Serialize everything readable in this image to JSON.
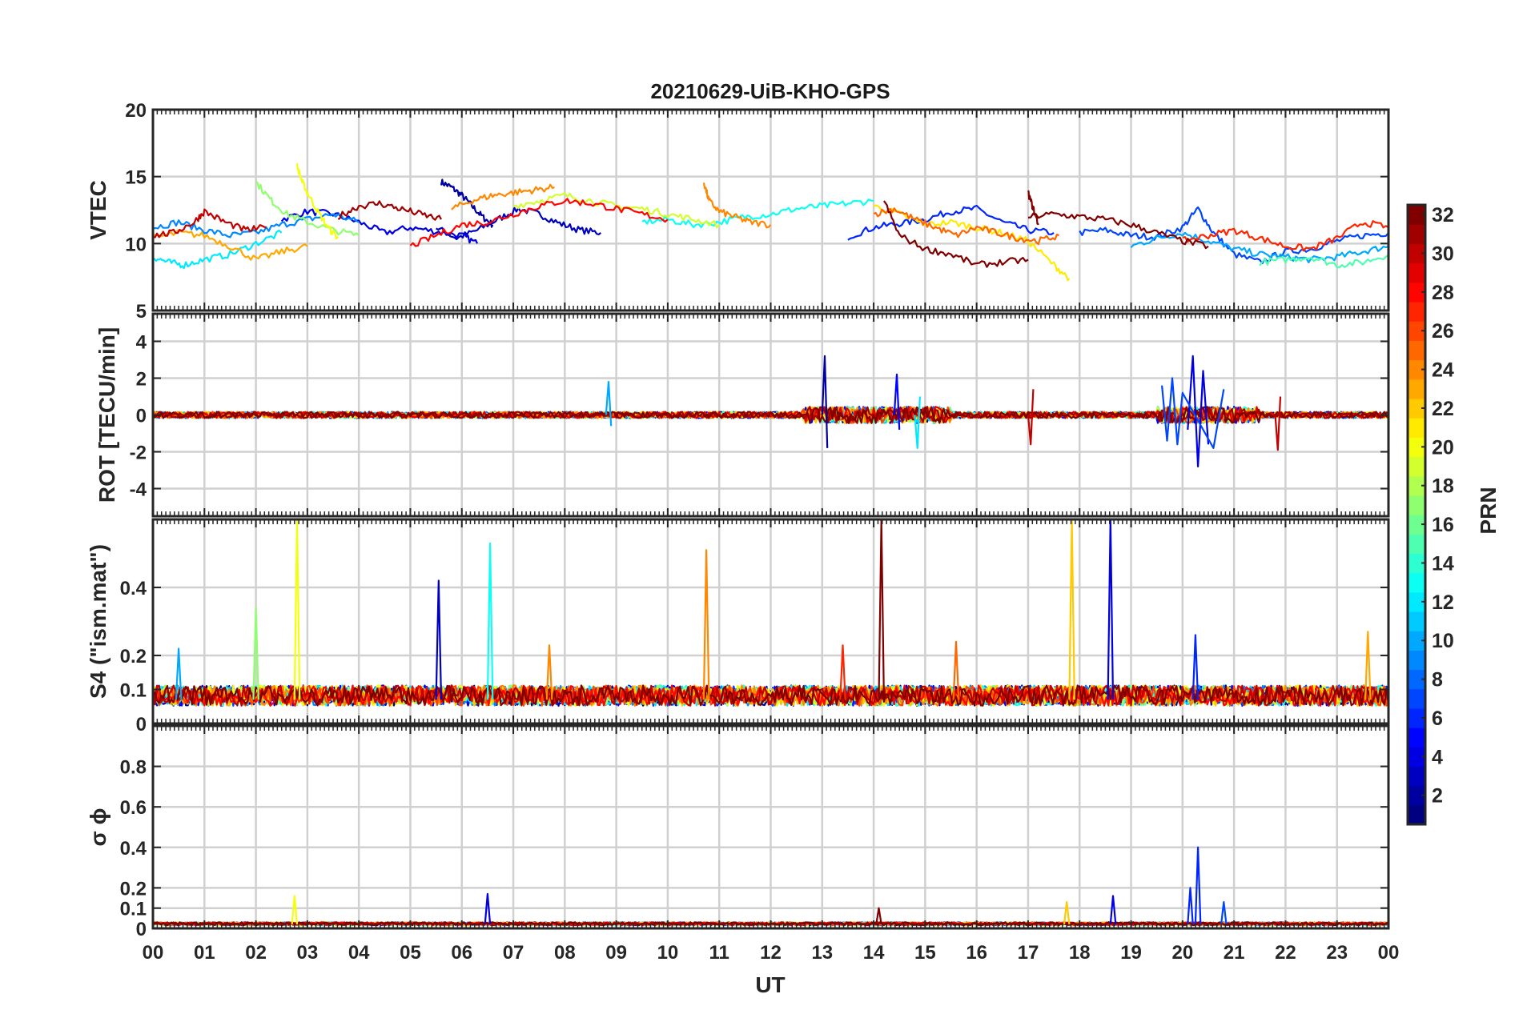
{
  "chart_data": {
    "type": "line",
    "title": "20210629-UiB-KHO-GPS",
    "xlabel": "UT",
    "x_tick_labels": [
      "00",
      "01",
      "02",
      "03",
      "04",
      "05",
      "06",
      "07",
      "08",
      "09",
      "10",
      "11",
      "12",
      "13",
      "14",
      "15",
      "16",
      "17",
      "18",
      "19",
      "20",
      "21",
      "22",
      "23",
      "00"
    ],
    "xlim": [
      0,
      24
    ],
    "colorbar": {
      "label": "PRN",
      "range": [
        1,
        32
      ],
      "tick_labels": [
        "2",
        "4",
        "6",
        "8",
        "10",
        "12",
        "14",
        "16",
        "18",
        "20",
        "22",
        "24",
        "26",
        "28",
        "30",
        "32"
      ],
      "colormap": "jet"
    },
    "panels": [
      {
        "id": "vtec",
        "ylabel": "VTEC",
        "ylim": [
          5,
          20
        ],
        "y_ticks": [
          5,
          10,
          15,
          20
        ],
        "y_tick_labels": [
          "5",
          "10",
          "15",
          "20"
        ],
        "grid": true,
        "series": [
          {
            "prn": 2,
            "x": [
              5.6,
              5.8,
              6.0,
              6.2,
              6.4,
              6.6
            ],
            "y": [
              14.6,
              14.2,
              13.6,
              12.8,
              12.0,
              11.4
            ]
          },
          {
            "prn": 3,
            "x": [
              5.5,
              5.9,
              6.3,
              6.7,
              7.1,
              7.5,
              7.9,
              8.3,
              8.7
            ],
            "y": [
              11.2,
              10.4,
              11.0,
              11.8,
              12.6,
              12.2,
              11.5,
              11.0,
              10.8
            ]
          },
          {
            "prn": 4,
            "x": [
              2.5,
              3.0,
              3.5,
              4.0,
              4.5,
              5.0,
              5.5,
              6.0,
              6.3
            ],
            "y": [
              11.8,
              12.4,
              12.2,
              11.6,
              10.8,
              11.2,
              10.9,
              10.6,
              10.0
            ]
          },
          {
            "prn": 6,
            "x": [
              13.5,
              14.0,
              14.5,
              15.0,
              15.5,
              16.0,
              16.5,
              17.0,
              17.5
            ],
            "y": [
              10.5,
              11.2,
              11.5,
              11.8,
              12.4,
              12.6,
              11.6,
              11.0,
              10.8
            ]
          },
          {
            "prn": 7,
            "x": [
              18.0,
              18.5,
              19.0,
              19.5,
              20.0,
              20.3,
              20.6,
              21.0,
              21.5,
              22.0,
              22.5,
              23.0,
              23.5,
              24.0
            ],
            "y": [
              10.8,
              11.0,
              10.6,
              10.5,
              11.2,
              12.6,
              10.8,
              9.2,
              8.6,
              9.4,
              9.6,
              10.2,
              10.6,
              10.8
            ]
          },
          {
            "prn": 9,
            "x": [
              0.0,
              0.5,
              1.0,
              1.5,
              2.0,
              2.5,
              3.0,
              3.5,
              4.0
            ],
            "y": [
              11.2,
              11.6,
              11.0,
              10.6,
              10.8,
              11.4,
              11.8,
              12.2,
              11.6
            ]
          },
          {
            "prn": 10,
            "x": [
              19.0,
              19.5,
              20.0,
              20.5,
              21.0,
              21.5,
              22.0,
              22.5,
              23.0,
              23.5,
              24.0
            ],
            "y": [
              9.8,
              10.4,
              10.8,
              10.2,
              9.6,
              9.2,
              9.0,
              8.8,
              9.0,
              9.4,
              9.8
            ]
          },
          {
            "prn": 12,
            "x": [
              0.0,
              0.3,
              0.6,
              1.0,
              1.5,
              2.0,
              2.5
            ],
            "y": [
              9.0,
              8.6,
              8.4,
              8.8,
              9.2,
              10.0,
              10.8
            ]
          },
          {
            "prn": 13,
            "x": [
              9.5,
              10.0,
              10.5,
              11.0,
              11.5,
              12.0,
              12.5,
              13.0,
              13.5,
              14.0
            ],
            "y": [
              11.6,
              11.8,
              11.4,
              11.6,
              12.0,
              12.2,
              12.6,
              12.8,
              13.0,
              13.2
            ]
          },
          {
            "prn": 15,
            "x": [
              21.5,
              22.0,
              22.5,
              23.0,
              23.5,
              24.0
            ],
            "y": [
              8.6,
              8.8,
              9.0,
              8.4,
              8.6,
              9.2
            ]
          },
          {
            "prn": 17,
            "x": [
              2.0,
              2.3,
              2.6,
              3.0,
              3.5,
              4.0
            ],
            "y": [
              14.6,
              13.2,
              12.2,
              11.6,
              11.0,
              10.6
            ]
          },
          {
            "prn": 19,
            "x": [
              7.0,
              7.5,
              8.0,
              8.5,
              9.0,
              9.5,
              10.0,
              10.5,
              11.0
            ],
            "y": [
              12.8,
              13.2,
              13.6,
              13.2,
              12.8,
              12.6,
              12.2,
              11.8,
              11.4
            ]
          },
          {
            "prn": 20,
            "x": [
              2.8,
              2.9,
              3.0,
              3.2,
              3.4,
              3.6
            ],
            "y": [
              15.8,
              14.6,
              13.8,
              12.4,
              11.2,
              10.4
            ]
          },
          {
            "prn": 21,
            "x": [
              14.0,
              14.5,
              15.0,
              15.5,
              16.0,
              16.5,
              17.0,
              17.5,
              17.8
            ],
            "y": [
              12.8,
              12.2,
              11.4,
              11.6,
              11.2,
              10.8,
              10.2,
              8.4,
              7.4
            ]
          },
          {
            "prn": 23,
            "x": [
              0.0,
              0.5,
              1.0,
              1.5,
              2.0,
              2.5,
              3.0
            ],
            "y": [
              10.4,
              10.8,
              10.6,
              9.8,
              8.8,
              9.4,
              9.8
            ]
          },
          {
            "prn": 24,
            "x": [
              5.8,
              6.2,
              6.6,
              7.0,
              7.4,
              7.8
            ],
            "y": [
              12.6,
              13.2,
              13.6,
              13.8,
              14.0,
              14.2
            ]
          },
          {
            "prn": 24,
            "x": [
              10.7,
              10.8,
              11.0,
              11.3,
              11.6,
              12.0
            ],
            "y": [
              14.6,
              13.2,
              12.4,
              12.0,
              11.6,
              11.4
            ]
          },
          {
            "prn": 25,
            "x": [
              14.0,
              14.4,
              14.8,
              15.2,
              15.6,
              16.0,
              16.4,
              16.8,
              17.2,
              17.6
            ],
            "y": [
              12.2,
              12.6,
              11.8,
              11.2,
              10.6,
              11.2,
              10.8,
              10.4,
              10.2,
              10.6
            ]
          },
          {
            "prn": 27,
            "x": [
              20.0,
              20.5,
              21.0,
              21.5,
              22.0,
              22.5,
              23.0,
              23.5,
              24.0
            ],
            "y": [
              10.2,
              10.6,
              11.0,
              10.4,
              9.8,
              9.6,
              10.4,
              11.6,
              11.2
            ]
          },
          {
            "prn": 28,
            "x": [
              5.0,
              5.5,
              6.0,
              6.5,
              7.0,
              7.5,
              8.0,
              8.5,
              9.0,
              9.5,
              10.0
            ],
            "y": [
              9.8,
              10.6,
              11.4,
              11.6,
              12.2,
              12.8,
              13.2,
              13.0,
              12.6,
              12.2,
              11.8
            ]
          },
          {
            "prn": 30,
            "x": [
              0.0,
              0.4,
              0.8,
              1.0,
              1.4,
              1.8,
              2.2
            ],
            "y": [
              10.6,
              10.8,
              11.6,
              12.4,
              11.6,
              11.0,
              11.2
            ]
          },
          {
            "prn": 31,
            "x": [
              3.6,
              4.0,
              4.4,
              4.8,
              5.2,
              5.6
            ],
            "y": [
              12.0,
              12.8,
              13.0,
              12.6,
              12.2,
              11.8
            ]
          },
          {
            "prn": 32,
            "x": [
              17.0,
              17.5,
              18.0,
              18.5,
              19.0,
              19.5,
              20.0,
              20.5
            ],
            "y": [
              12.0,
              12.2,
              12.0,
              11.8,
              11.4,
              10.8,
              10.2,
              9.8
            ]
          },
          {
            "prn": 32,
            "x": [
              14.2,
              14.5,
              15.0,
              15.5,
              16.0,
              16.5,
              17.0
            ],
            "y": [
              13.2,
              10.6,
              9.6,
              9.2,
              8.4,
              8.6,
              8.8
            ]
          },
          {
            "prn": 32,
            "x": [
              17.0,
              17.1,
              17.2
            ],
            "y": [
              13.8,
              12.6,
              11.4
            ]
          }
        ]
      },
      {
        "id": "rot",
        "ylabel": "ROT [TECU/min]",
        "ylim": [
          -5.5,
          5.5
        ],
        "y_ticks": [
          -4,
          -2,
          0,
          2,
          4
        ],
        "y_tick_labels": [
          "-4",
          "-2",
          "0",
          "2",
          "4"
        ],
        "grid": true,
        "series": [
          {
            "prn": 2,
            "x": [
              13.0,
              13.05,
              13.1
            ],
            "y": [
              0.0,
              3.2,
              -1.8
            ]
          },
          {
            "prn": 4,
            "x": [
              20.1,
              20.2,
              20.3,
              20.4,
              20.5
            ],
            "y": [
              -0.8,
              3.2,
              -2.8,
              2.4,
              -1.6
            ]
          },
          {
            "prn": 7,
            "x": [
              19.6,
              19.7,
              19.8,
              19.9,
              20.0,
              20.6,
              20.8
            ],
            "y": [
              1.6,
              -1.4,
              2.0,
              -1.6,
              1.2,
              -1.8,
              1.4
            ]
          },
          {
            "prn": 10,
            "x": [
              8.8,
              8.85,
              8.9
            ],
            "y": [
              0.0,
              1.8,
              -0.6
            ]
          },
          {
            "prn": 12,
            "x": [
              14.8,
              14.85,
              14.9
            ],
            "y": [
              0.0,
              -1.8,
              1.0
            ]
          },
          {
            "prn": 5,
            "x": [
              14.4,
              14.45,
              14.5
            ],
            "y": [
              0.0,
              2.2,
              -0.8
            ]
          },
          {
            "prn": 30,
            "x": [
              21.8,
              21.85,
              21.9
            ],
            "y": [
              0.0,
              -1.9,
              1.0
            ]
          },
          {
            "prn": 30,
            "x": [
              17.0,
              17.05,
              17.1
            ],
            "y": [
              0.0,
              -1.6,
              1.4
            ]
          }
        ]
      },
      {
        "id": "s4",
        "ylabel": "S4 (\"ism.mat\")",
        "ylim": [
          0,
          0.6
        ],
        "y_ticks": [
          0,
          0.1,
          0.2,
          0.4
        ],
        "y_tick_labels": [
          "0",
          "0.1",
          "0.2",
          "0.4"
        ],
        "grid": true,
        "spikes": [
          {
            "prn": 20,
            "x": 2.8,
            "y": 0.6
          },
          {
            "prn": 17,
            "x": 2.0,
            "y": 0.34
          },
          {
            "prn": 10,
            "x": 0.5,
            "y": 0.22
          },
          {
            "prn": 3,
            "x": 5.55,
            "y": 0.42
          },
          {
            "prn": 13,
            "x": 6.55,
            "y": 0.53
          },
          {
            "prn": 24,
            "x": 10.75,
            "y": 0.51
          },
          {
            "prn": 32,
            "x": 14.15,
            "y": 0.6
          },
          {
            "prn": 22,
            "x": 17.85,
            "y": 0.6
          },
          {
            "prn": 4,
            "x": 18.6,
            "y": 0.6
          },
          {
            "prn": 6,
            "x": 20.25,
            "y": 0.26
          },
          {
            "prn": 23,
            "x": 23.6,
            "y": 0.27
          },
          {
            "prn": 27,
            "x": 13.4,
            "y": 0.23
          },
          {
            "prn": 25,
            "x": 15.6,
            "y": 0.24
          },
          {
            "prn": 24,
            "x": 7.7,
            "y": 0.23
          }
        ]
      },
      {
        "id": "sigma_phi",
        "ylabel": "σ ϕ",
        "ylim": [
          0,
          1
        ],
        "y_ticks": [
          0,
          0.1,
          0.2,
          0.4,
          0.6,
          0.8
        ],
        "y_tick_labels": [
          "0",
          "0.1",
          "0.2",
          "0.4",
          "0.6",
          "0.8"
        ],
        "grid": true,
        "spikes": [
          {
            "prn": 20,
            "x": 2.75,
            "y": 0.16
          },
          {
            "prn": 4,
            "x": 6.5,
            "y": 0.17
          },
          {
            "prn": 22,
            "x": 17.75,
            "y": 0.13
          },
          {
            "prn": 4,
            "x": 18.65,
            "y": 0.16
          },
          {
            "prn": 6,
            "x": 20.15,
            "y": 0.2
          },
          {
            "prn": 6,
            "x": 20.3,
            "y": 0.4
          },
          {
            "prn": 7,
            "x": 20.8,
            "y": 0.13
          },
          {
            "prn": 32,
            "x": 14.1,
            "y": 0.1
          }
        ]
      }
    ]
  }
}
